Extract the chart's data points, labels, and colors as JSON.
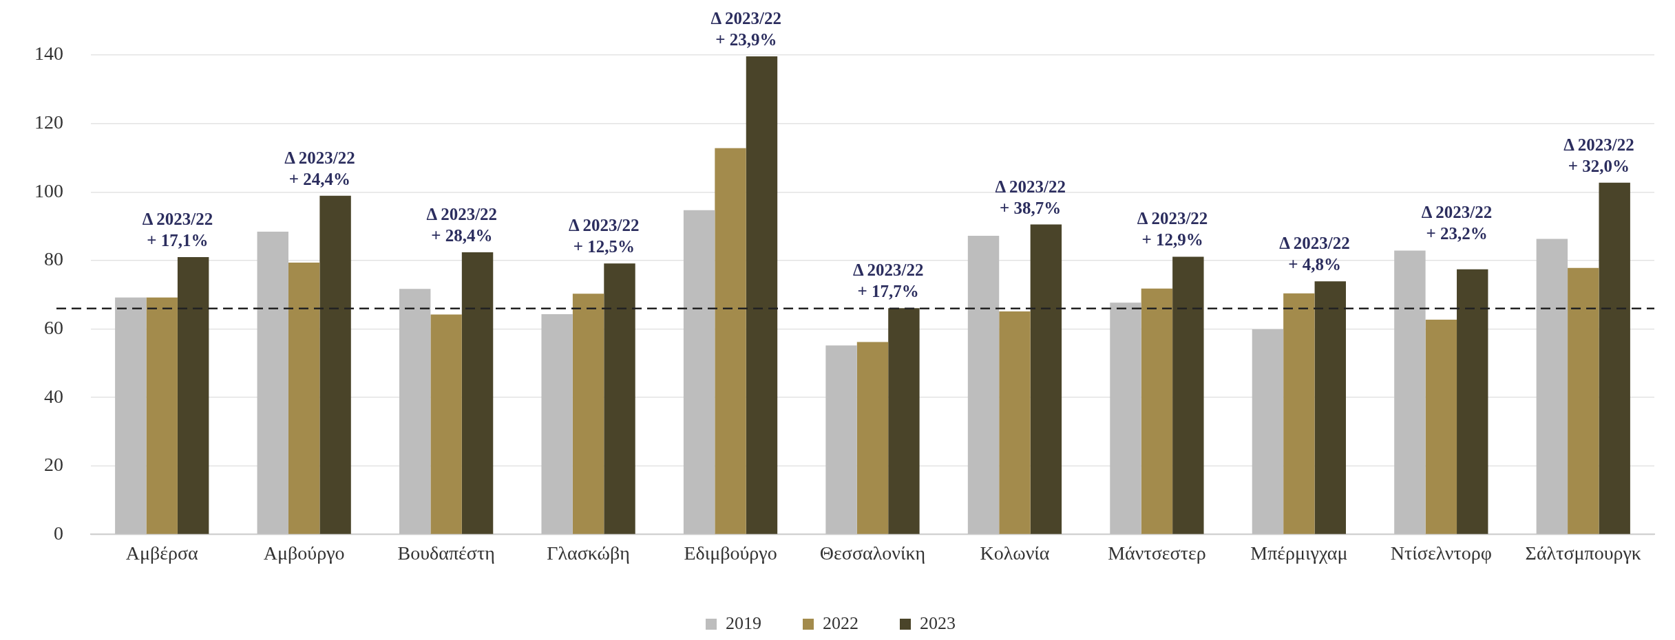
{
  "chart_data": {
    "type": "bar",
    "categories": [
      "Αμβέρσα",
      "Αμβούργο",
      "Βουδαπέστη",
      "Γλασκώβη",
      "Εδιμβούργο",
      "Θεσσαλονίκη",
      "Κολωνία",
      "Μάντσεστερ",
      "Μπέρμιγχαμ",
      "Ντίσελντορφ",
      "Σάλτσμπουργκ"
    ],
    "series": [
      {
        "name": "2019",
        "color": "#bdbdbd",
        "values": [
          69.2,
          88.4,
          71.7,
          64.3,
          94.7,
          55.2,
          87.2,
          67.7,
          59.9,
          82.9,
          86.3
        ]
      },
      {
        "name": "2022",
        "color": "#a38b4c",
        "values": [
          69.2,
          79.4,
          64.2,
          70.3,
          112.8,
          56.2,
          65.1,
          71.8,
          70.4,
          62.7,
          77.8
        ]
      },
      {
        "name": "2023",
        "color": "#4a4429",
        "values": [
          81.0,
          98.9,
          82.4,
          79.1,
          139.6,
          66.1,
          90.5,
          81.1,
          73.9,
          77.4,
          102.7
        ]
      }
    ],
    "ylim": [
      0,
      140
    ],
    "yticks": [
      0,
      20,
      40,
      60,
      80,
      100,
      120,
      140
    ],
    "grid": "y",
    "legend": "bottom",
    "ref_lines": [
      {
        "axis": "y",
        "value": 66,
        "color": "#222222",
        "line_style": "dashed"
      }
    ],
    "annotations": [
      "Δ 2023/22\n+ 17,1%",
      "Δ 2023/22\n+ 24,4%",
      "Δ 2023/22\n+ 28,4%",
      "Δ 2023/22\n+ 12,5%",
      "Δ 2023/22\n+ 23,9%",
      "Δ 2023/22\n+ 17,7%",
      "Δ 2023/22\n+ 38,7%",
      "Δ 2023/22\n+ 12,9%",
      "Δ 2023/22\n+ 4,8%",
      "Δ 2023/22\n+ 23,2%",
      "Δ 2023/22\n+ 32,0%"
    ]
  }
}
